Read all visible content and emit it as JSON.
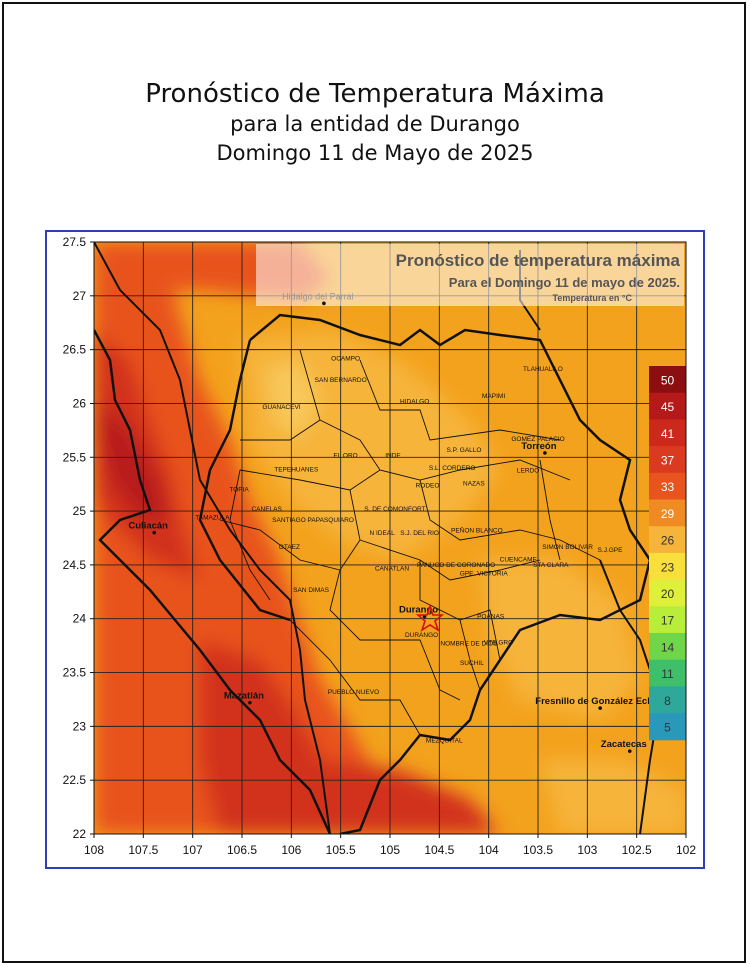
{
  "header": {
    "title": "Pronóstico de Temperatura Máxima",
    "subtitle": "para la entidad de Durango",
    "date": "Domingo 11 de Mayo de 2025"
  },
  "map": {
    "overlay_title": "Pronóstico de temperatura máxima",
    "overlay_subtitle": "Para el Domingo 11 de mayo de 2025.",
    "overlay_units": "Temperatura en °C",
    "lon_ticks": [
      "108",
      "107.5",
      "107",
      "106.5",
      "106",
      "105.5",
      "105",
      "104.5",
      "104",
      "103.5",
      "103",
      "102.5",
      "102"
    ],
    "lat_ticks": [
      "27.5",
      "27",
      "26.5",
      "26",
      "25.5",
      "25",
      "24.5",
      "24",
      "23.5",
      "23",
      "22.5",
      "22"
    ],
    "colors": {
      "frame": "#2a3fb8",
      "base": "#f3a21d",
      "hot": "#e8531e",
      "hotter": "#d2301c",
      "hottest": "#b81c1a",
      "cooler": "#f6b43a",
      "coolest": "#f8c85a"
    },
    "cities": [
      {
        "name": "Hidalgo del Parral",
        "lon": 105.67,
        "lat": 26.93
      },
      {
        "name": "Culiacán",
        "lon": 107.39,
        "lat": 24.8
      },
      {
        "name": "Torreón",
        "lon": 103.43,
        "lat": 25.54
      },
      {
        "name": "Durango",
        "lon": 104.65,
        "lat": 24.02
      },
      {
        "name": "Mazatlán",
        "lon": 106.42,
        "lat": 23.22
      },
      {
        "name": "Fresnillo de González Ech",
        "lon": 102.87,
        "lat": 23.17
      },
      {
        "name": "Zacatecas",
        "lon": 102.57,
        "lat": 22.77
      }
    ],
    "municipalities": [
      {
        "name": "OCAMPO",
        "lon": 105.45,
        "lat": 26.4
      },
      {
        "name": "SAN BERNARDO",
        "lon": 105.5,
        "lat": 26.2
      },
      {
        "name": "HIDALGO",
        "lon": 104.75,
        "lat": 26.0
      },
      {
        "name": "MAPIMI",
        "lon": 103.95,
        "lat": 26.05
      },
      {
        "name": "TLAHUALILO",
        "lon": 103.45,
        "lat": 26.3
      },
      {
        "name": "GUANACEVI",
        "lon": 106.1,
        "lat": 25.95
      },
      {
        "name": "GOMEZ PALACIO",
        "lon": 103.5,
        "lat": 25.65
      },
      {
        "name": "S.P. GALLO",
        "lon": 104.25,
        "lat": 25.55
      },
      {
        "name": "EL ORO",
        "lon": 105.45,
        "lat": 25.5
      },
      {
        "name": "INDE",
        "lon": 104.97,
        "lat": 25.5
      },
      {
        "name": "LERDO",
        "lon": 103.6,
        "lat": 25.36
      },
      {
        "name": "TEPEHUANES",
        "lon": 105.95,
        "lat": 25.37
      },
      {
        "name": "S.L. CORDERO",
        "lon": 104.37,
        "lat": 25.38
      },
      {
        "name": "RODEO",
        "lon": 104.62,
        "lat": 25.22
      },
      {
        "name": "NAZAS",
        "lon": 104.15,
        "lat": 25.24
      },
      {
        "name": "TOPIA",
        "lon": 106.53,
        "lat": 25.18
      },
      {
        "name": "CANELAS",
        "lon": 106.25,
        "lat": 25.0
      },
      {
        "name": "TAMAZULA",
        "lon": 106.8,
        "lat": 24.92
      },
      {
        "name": "S. DE COMONFORT",
        "lon": 104.95,
        "lat": 25.0
      },
      {
        "name": "SANTIAGO PAPASQUIARO",
        "lon": 105.78,
        "lat": 24.9
      },
      {
        "name": "N IDEAL",
        "lon": 105.08,
        "lat": 24.78
      },
      {
        "name": "S.J. DEL RIO",
        "lon": 104.7,
        "lat": 24.78
      },
      {
        "name": "PEÑON BLANCO",
        "lon": 104.12,
        "lat": 24.8
      },
      {
        "name": "SIMON BOLIVAR",
        "lon": 103.2,
        "lat": 24.65
      },
      {
        "name": "S.J.GPE",
        "lon": 102.77,
        "lat": 24.62
      },
      {
        "name": "OTAEZ",
        "lon": 106.02,
        "lat": 24.65
      },
      {
        "name": "CUENCAME",
        "lon": 103.7,
        "lat": 24.53
      },
      {
        "name": "STA CLARA",
        "lon": 103.37,
        "lat": 24.48
      },
      {
        "name": "CANATLAN",
        "lon": 104.98,
        "lat": 24.45
      },
      {
        "name": "PANUCO DE CORONADO",
        "lon": 104.33,
        "lat": 24.48
      },
      {
        "name": "GPE. VICTORIA",
        "lon": 104.05,
        "lat": 24.4
      },
      {
        "name": "SAN DIMAS",
        "lon": 105.8,
        "lat": 24.25
      },
      {
        "name": "POANAS",
        "lon": 103.98,
        "lat": 24.0
      },
      {
        "name": "DURANGO",
        "lon": 104.68,
        "lat": 23.83
      },
      {
        "name": "NOMBRE DE DIOS",
        "lon": 104.2,
        "lat": 23.75
      },
      {
        "name": "VTE.GRO",
        "lon": 103.9,
        "lat": 23.76
      },
      {
        "name": "SUCHIL",
        "lon": 104.17,
        "lat": 23.57
      },
      {
        "name": "PUEBLO NUEVO",
        "lon": 105.37,
        "lat": 23.3
      },
      {
        "name": "MEZQUITAL",
        "lon": 104.45,
        "lat": 22.85
      }
    ],
    "legend": {
      "values": [
        "50",
        "45",
        "41",
        "37",
        "33",
        "29",
        "26",
        "23",
        "20",
        "17",
        "14",
        "11",
        "8",
        "5"
      ],
      "colors": [
        "#8b0f10",
        "#b5191a",
        "#cc281c",
        "#da3a1f",
        "#e8531e",
        "#f08a22",
        "#f6b43a",
        "#f8df3a",
        "#dff03a",
        "#b8ee3a",
        "#6fd64a",
        "#3fbf6a",
        "#2ea89a",
        "#2a98b8"
      ]
    }
  }
}
